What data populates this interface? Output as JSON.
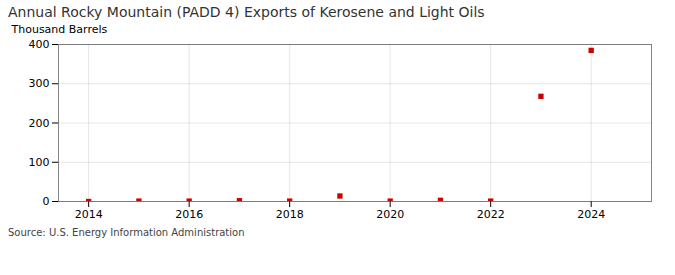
{
  "chart_data": {
    "type": "scatter",
    "title": "Annual Rocky Mountain (PADD 4) Exports of Kerosene and Light Oils",
    "ylabel": "Thousand Barrels",
    "annotations": [
      "Source: U.S. Energy Information Administration"
    ],
    "x": [
      2014,
      2015,
      2016,
      2017,
      2018,
      2019,
      2020,
      2021,
      2022,
      2023,
      2024
    ],
    "values": [
      0,
      1,
      1,
      2,
      1,
      14,
      1,
      3,
      1,
      268,
      385
    ],
    "color": "#cc0000",
    "marker": "square",
    "xlim": [
      2013.4,
      2025.2
    ],
    "ylim": [
      0,
      400
    ],
    "xticks": [
      2014,
      2016,
      2018,
      2020,
      2022,
      2024
    ],
    "yticks": [
      0,
      100,
      200,
      300,
      400
    ],
    "grid": true
  }
}
